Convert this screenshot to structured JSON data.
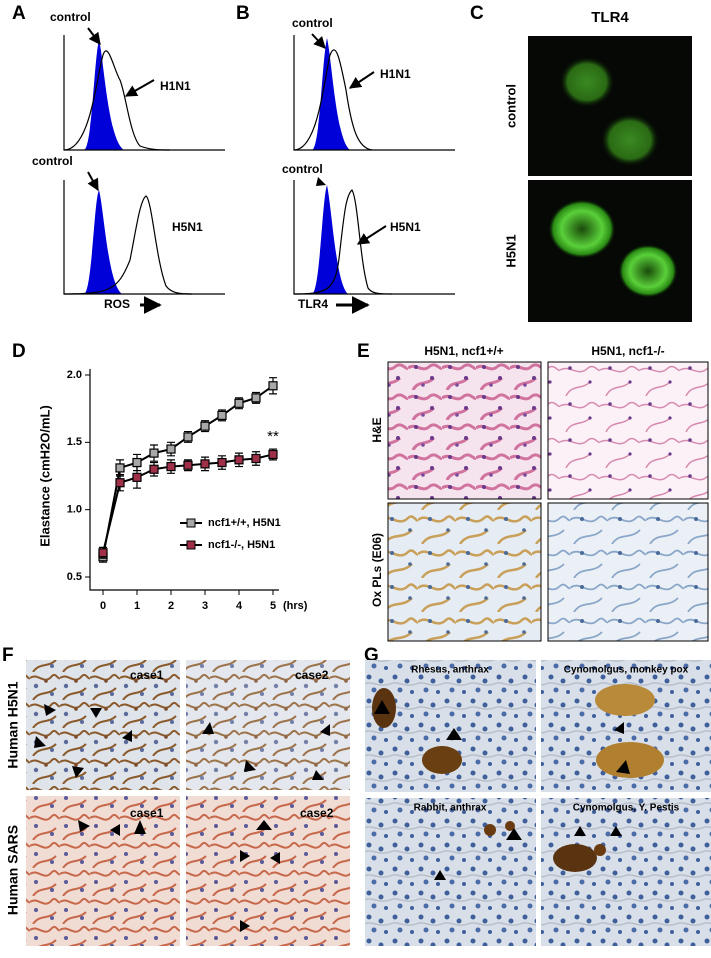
{
  "panel_a": {
    "label": "A",
    "top": {
      "peak_label": "control",
      "arrow_label": "H1N1"
    },
    "bottom": {
      "peak_label": "control",
      "arrow_label": "H5N1"
    },
    "axis_label": "ROS"
  },
  "panel_b": {
    "label": "B",
    "top": {
      "peak_label": "control",
      "arrow_label": "H1N1"
    },
    "bottom": {
      "peak_label": "control",
      "arrow_label": "H5N1"
    },
    "axis_label": "TLR4"
  },
  "panel_c": {
    "label": "C",
    "title": "TLR4",
    "rows": [
      "control",
      "H5N1"
    ]
  },
  "panel_d": {
    "label": "D"
  },
  "chart_data": {
    "type": "line",
    "y_label": "Elastance (cmH2O/mL)",
    "x_unit": "(hrs)",
    "annotation": "**",
    "x": [
      0,
      0.5,
      1,
      1.5,
      2,
      2.5,
      3,
      3.5,
      4,
      4.5,
      5
    ],
    "series": [
      {
        "name": "ncf1+/+, H5N1",
        "color": "#000000",
        "marker_color": "#a8a8a8",
        "values": [
          0.65,
          1.31,
          1.35,
          1.42,
          1.45,
          1.54,
          1.62,
          1.7,
          1.79,
          1.83,
          1.92
        ],
        "errors": [
          0.04,
          0.06,
          0.06,
          0.06,
          0.05,
          0.04,
          0.04,
          0.04,
          0.04,
          0.04,
          0.06
        ]
      },
      {
        "name": "ncf1-/-, H5N1",
        "color": "#000000",
        "marker_color": "#a0304a",
        "values": [
          0.68,
          1.2,
          1.24,
          1.3,
          1.32,
          1.33,
          1.34,
          1.35,
          1.37,
          1.38,
          1.41
        ],
        "errors": [
          0.04,
          0.06,
          0.08,
          0.05,
          0.05,
          0.04,
          0.05,
          0.05,
          0.05,
          0.05,
          0.04
        ]
      }
    ],
    "xlim": [
      0,
      5
    ],
    "xticks": [
      0,
      1,
      2,
      3,
      4,
      5
    ],
    "ylim": [
      0.5,
      2.0
    ],
    "yticks": [
      0.5,
      {
        "value": 1.0,
        "label": "1.0"
      },
      1.5,
      {
        "value": 2.0,
        "label": "2.0"
      }
    ]
  },
  "panel_e": {
    "label": "E",
    "columns": [
      "H5N1, ncf1+/+",
      "H5N1, ncf1-/-"
    ],
    "rows": [
      "H&E",
      "Ox PLs (E06)"
    ]
  },
  "panel_f": {
    "label": "F",
    "rows": [
      "Human H5N1",
      "Human SARS"
    ],
    "cases": [
      "case1",
      "case2",
      "case1",
      "case2"
    ]
  },
  "panel_g": {
    "label": "G",
    "captions": [
      "Rhesus, anthrax",
      "Cynomolgus, monkey pox",
      "Rabbit, anthrax",
      "Cynomolgus, Y. Pestis"
    ]
  }
}
